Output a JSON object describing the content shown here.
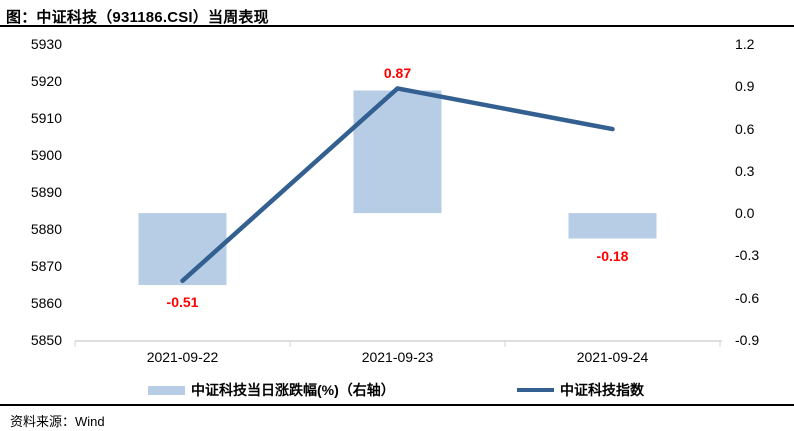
{
  "header": {
    "title": "图：中证科技（931186.CSI）当周表现"
  },
  "footer": {
    "source": "资料来源：Wind"
  },
  "colors": {
    "bar_fill": "#b7cce5",
    "line": "#336090",
    "label_red": "#ff0000",
    "axis_line": "#d4d4d4",
    "text": "#000000"
  },
  "chart_data": {
    "type": "combo",
    "title": "图：中证科技（931186.CSI）当周表现",
    "categories": [
      "2021-09-22",
      "2021-09-23",
      "2021-09-24"
    ],
    "series": [
      {
        "name": "中证科技当日涨跌幅(%)（右轴）",
        "type": "bar",
        "axis": "right",
        "values": [
          -0.51,
          0.87,
          -0.18
        ],
        "labels": [
          "-0.51",
          "0.87",
          "-0.18"
        ]
      },
      {
        "name": "中证科技指数",
        "type": "line",
        "axis": "left",
        "values": [
          5866,
          5918,
          5907
        ]
      }
    ],
    "left_axis": {
      "min": 5850,
      "max": 5930,
      "ticks": [
        "5930",
        "5920",
        "5910",
        "5900",
        "5890",
        "5880",
        "5870",
        "5860",
        "5850"
      ]
    },
    "right_axis": {
      "min": -0.9,
      "max": 1.2,
      "ticks": [
        "1.2",
        "0.9",
        "0.6",
        "0.3",
        "0.0",
        "-0.3",
        "-0.6",
        "-0.9"
      ]
    },
    "grid": false,
    "legend_position": "bottom"
  }
}
